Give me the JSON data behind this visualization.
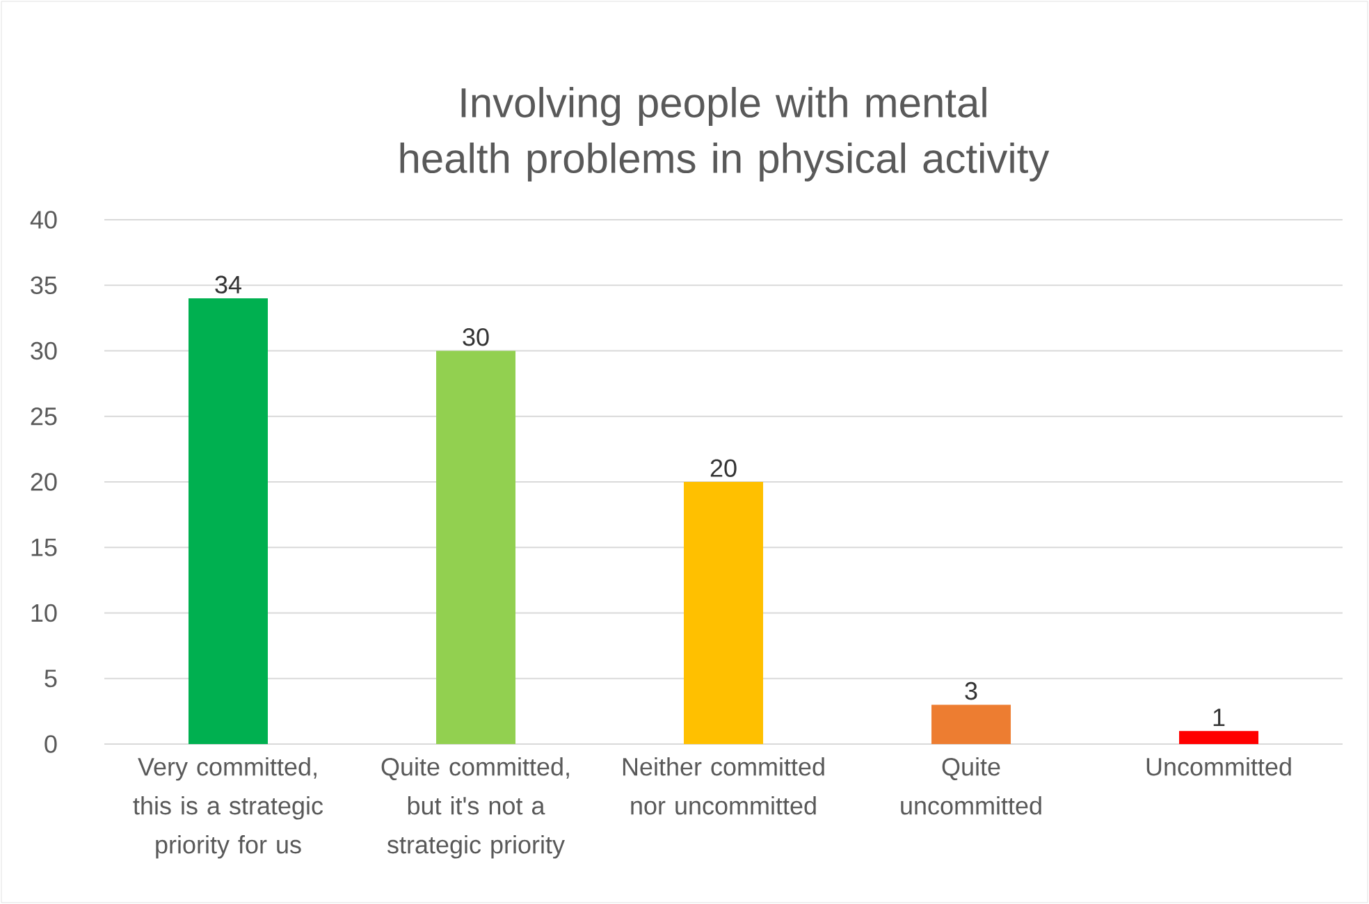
{
  "chart_data": {
    "type": "bar",
    "title": "Involving people with mental health problems in physical activity",
    "categories": [
      "Very committed, this is a strategic priority for us",
      "Quite committed, but it's not a strategic priority",
      "Neither committed nor uncommitted",
      "Quite uncommitted",
      "Uncommitted"
    ],
    "values": [
      34,
      30,
      20,
      3,
      1
    ],
    "colors": [
      "#00b050",
      "#92d050",
      "#ffc000",
      "#ed7d31",
      "#ff0000"
    ],
    "ylim": [
      0,
      40
    ],
    "yticks": [
      0,
      5,
      10,
      15,
      20,
      25,
      30,
      35,
      40
    ],
    "grid": "y",
    "data_labels": true
  }
}
